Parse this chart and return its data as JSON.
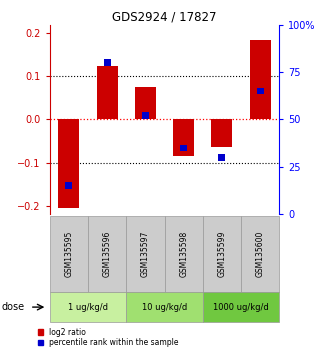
{
  "title": "GDS2924 / 17827",
  "samples": [
    "GSM135595",
    "GSM135596",
    "GSM135597",
    "GSM135598",
    "GSM135599",
    "GSM135600"
  ],
  "log2_ratios": [
    -0.205,
    0.125,
    0.075,
    -0.085,
    -0.065,
    0.185
  ],
  "percentile_ranks": [
    15,
    80,
    52,
    35,
    30,
    65
  ],
  "dose_groups": [
    {
      "label": "1 ug/kg/d",
      "samples": [
        0,
        1
      ],
      "color": "#c8f0a0"
    },
    {
      "label": "10 ug/kg/d",
      "samples": [
        2,
        3
      ],
      "color": "#a0e070"
    },
    {
      "label": "1000 ug/kg/d",
      "samples": [
        4,
        5
      ],
      "color": "#70c840"
    }
  ],
  "ylim_left": [
    -0.22,
    0.22
  ],
  "ylim_right": [
    0,
    100
  ],
  "yticks_left": [
    -0.2,
    -0.1,
    0,
    0.1,
    0.2
  ],
  "yticks_right": [
    0,
    25,
    50,
    75,
    100
  ],
  "bar_color_red": "#cc0000",
  "bar_color_blue": "#0000cc",
  "sample_bg_color": "#cccccc",
  "legend_red_label": "log2 ratio",
  "legend_blue_label": "percentile rank within the sample",
  "bar_width": 0.55,
  "blue_bar_width": 0.18
}
